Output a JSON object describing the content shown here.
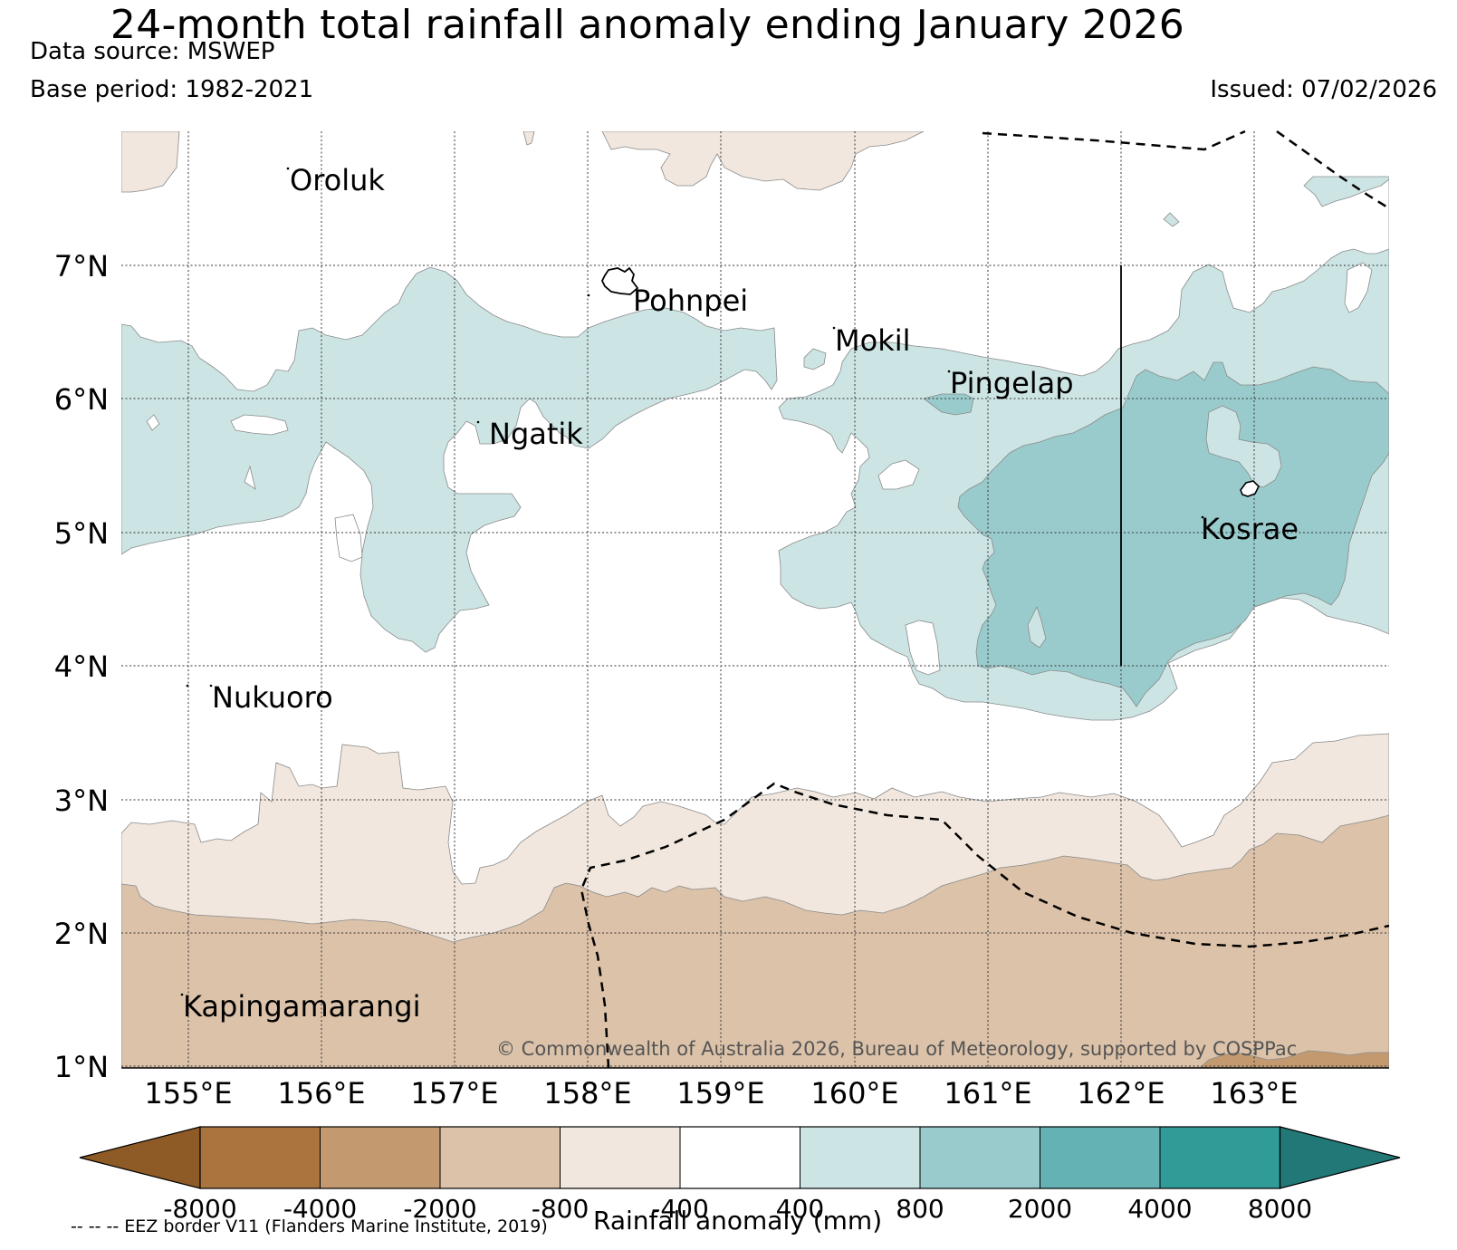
{
  "header": {
    "title": "24-month total rainfall anomaly ending January 2026",
    "source": "Data source: MSWEP",
    "base_period": "Base period: 1982-2021",
    "issued": "Issued: 07/02/2026"
  },
  "map": {
    "lat_labels": [
      "7°N",
      "6°N",
      "5°N",
      "4°N",
      "3°N",
      "2°N",
      "1°N"
    ],
    "lon_labels": [
      "155°E",
      "156°E",
      "157°E",
      "158°E",
      "159°E",
      "160°E",
      "161°E",
      "162°E",
      "163°E"
    ],
    "places": [
      "Oroluk",
      "Pohnpei",
      "Mokil",
      "Pingelap",
      "Ngatik",
      "Kosrae",
      "Nukuoro",
      "Kapingamarangi"
    ],
    "copyright": "© Commonwealth of Australia 2026, Bureau of Meteorology, supported by COSPPac"
  },
  "legend": {
    "ticks": [
      "-8000",
      "-4000",
      "-2000",
      "-800",
      "-400",
      "400",
      "800",
      "2000",
      "4000",
      "8000"
    ],
    "colors": [
      "#8e5a25",
      "#aa743f",
      "#c39a70",
      "#dbc2a9",
      "#f1e7de",
      "#ffffff",
      "#cce5e4",
      "#9acbcc",
      "#64b2b3",
      "#319b97",
      "#227877"
    ],
    "unit_label": "Rainfall anomaly (mm)",
    "eez_note": "-- -- -- EEZ border V11 (Flanders Marine Institute, 2019)"
  }
}
